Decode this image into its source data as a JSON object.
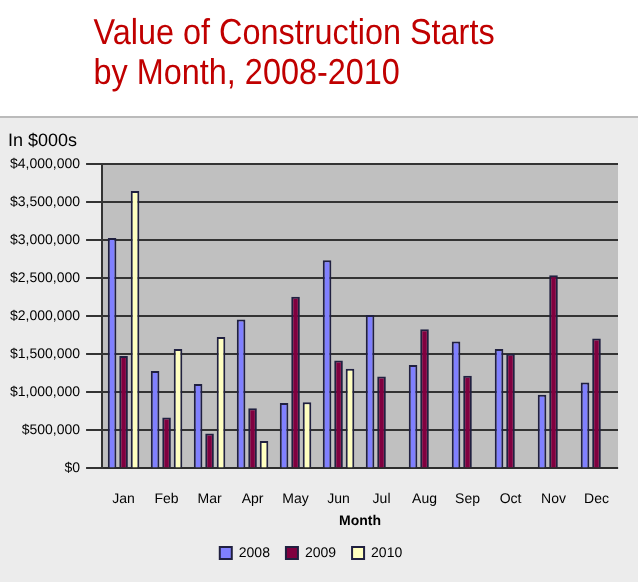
{
  "chart_data": {
    "type": "bar",
    "title": "Value of Construction Starts\nby Month, 2008-2010",
    "ylabel": "In $000s",
    "xlabel": "Month",
    "categories": [
      "Jan",
      "Feb",
      "Mar",
      "Apr",
      "May",
      "Jun",
      "Jul",
      "Aug",
      "Sep",
      "Oct",
      "Nov",
      "Dec"
    ],
    "series": [
      {
        "name": "2008",
        "color": "#8080ff",
        "values": [
          3030000,
          1280000,
          1110000,
          1960000,
          860000,
          2740000,
          2020000,
          1360000,
          1670000,
          1570000,
          970000,
          1130000
        ]
      },
      {
        "name": "2009",
        "color": "#800040",
        "values": [
          1480000,
          670000,
          460000,
          790000,
          2260000,
          1420000,
          1210000,
          1830000,
          1220000,
          1510000,
          2540000,
          1710000
        ]
      },
      {
        "name": "2010",
        "color": "#ffffc0",
        "values": [
          3650000,
          1570000,
          1730000,
          360000,
          870000,
          1310000,
          null,
          null,
          null,
          null,
          null,
          null
        ]
      }
    ],
    "ylim": [
      0,
      4000000
    ],
    "yticks": [
      {
        "value": 0,
        "label": "$0"
      },
      {
        "value": 500000,
        "label": "$500,000"
      },
      {
        "value": 1000000,
        "label": "$1,000,000"
      },
      {
        "value": 1500000,
        "label": "$1,500,000"
      },
      {
        "value": 2000000,
        "label": "$2,000,000"
      },
      {
        "value": 2500000,
        "label": "$2,500,000"
      },
      {
        "value": 3000000,
        "label": "$3,000,000"
      },
      {
        "value": 3500000,
        "label": "$3,500,000"
      },
      {
        "value": 4000000,
        "label": "$4,000,000"
      }
    ],
    "grid": "y",
    "legend": "bottom"
  }
}
